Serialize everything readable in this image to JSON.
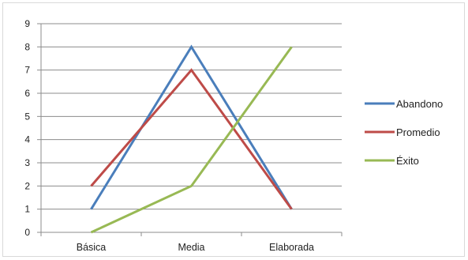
{
  "chart_data": {
    "type": "line",
    "categories": [
      "Básica",
      "Media",
      "Elaborada"
    ],
    "series": [
      {
        "name": "Abandono",
        "values": [
          1,
          8,
          1
        ],
        "color": "#4a7ebb"
      },
      {
        "name": "Promedio",
        "values": [
          2,
          7,
          1
        ],
        "color": "#be4b48"
      },
      {
        "name": "Éxito",
        "values": [
          0,
          2,
          8
        ],
        "color": "#98b954"
      }
    ],
    "yticks": [
      "0",
      "1",
      "2",
      "3",
      "4",
      "5",
      "6",
      "7",
      "8",
      "9"
    ],
    "ylim": [
      0,
      9
    ],
    "grid": true,
    "legend": "right"
  }
}
